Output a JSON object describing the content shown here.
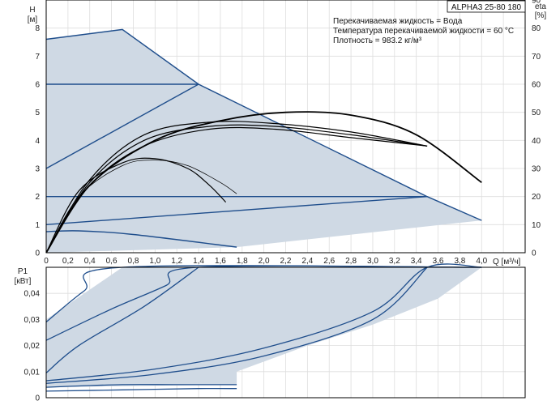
{
  "header": {
    "model": "ALPHA3 25-80 180",
    "info_lines": [
      "Перекачиваемая жидкость = Вода",
      "Температура перекачиваемой жидкости = 60 °C",
      "Плотность = 983.2 кг/м³"
    ]
  },
  "colors": {
    "area_fill": "#cfd9e4",
    "curve_blue": "#1f4e8c",
    "curve_black": "#000000",
    "grid": "#dddddd"
  },
  "chart_data": [
    {
      "type": "line",
      "name": "head-and-efficiency",
      "xlabel": "Q [м³/ч]",
      "ylabel_line1": "H",
      "ylabel_line2": "[м]",
      "y2label_line1": "eta",
      "y2label_line2": "[%]",
      "xlim": [
        0,
        4.4
      ],
      "ylim": [
        0,
        9
      ],
      "y2lim": [
        0,
        90
      ],
      "grid": true,
      "x_ticks": [
        "0",
        "0,2",
        "0,4",
        "0,6",
        "0,8",
        "1,0",
        "1,2",
        "1,4",
        "1,6",
        "1,8",
        "2,0",
        "2,2",
        "2,4",
        "2,6",
        "2,8",
        "3,0",
        "3,2",
        "3,4",
        "3,6",
        "3,8",
        "4,0"
      ],
      "y_ticks": [
        "0",
        "1",
        "2",
        "3",
        "4",
        "5",
        "6",
        "7",
        "8"
      ],
      "y2_ticks": [
        "0",
        "10",
        "20",
        "30",
        "40",
        "50",
        "60",
        "70",
        "80",
        "90"
      ],
      "operating_area": {
        "x": [
          0,
          0.7,
          1.4,
          3.5,
          4.0,
          4.0,
          1.75,
          0
        ],
        "y": [
          7.6,
          7.95,
          6.0,
          2.0,
          1.15,
          1.15,
          0.2,
          0
        ]
      },
      "head_curves": [
        {
          "x": [
            0,
            0.7,
            1.4,
            3.5,
            4.0
          ],
          "y": [
            7.6,
            7.95,
            6.0,
            2.0,
            1.15
          ]
        },
        {
          "x": [
            0,
            1.4
          ],
          "y": [
            6.0,
            6.0
          ]
        },
        {
          "x": [
            0,
            1.4
          ],
          "y": [
            3.0,
            6.0
          ]
        },
        {
          "x": [
            0,
            3.5
          ],
          "y": [
            2.0,
            2.0
          ]
        },
        {
          "x": [
            0,
            3.5
          ],
          "y": [
            1.0,
            2.0
          ]
        },
        {
          "x": [
            0,
            0.3,
            0.8,
            1.75
          ],
          "y": [
            0.75,
            0.78,
            0.65,
            0.2
          ]
        }
      ],
      "efficiency_curves": [
        {
          "x": [
            0,
            0.4,
            1.0,
            1.6,
            2.2,
            2.8,
            3.4,
            4.0
          ],
          "y": [
            0,
            24,
            40,
            47,
            50,
            49,
            42,
            25
          ]
        },
        {
          "x": [
            0,
            0.4,
            0.9,
            1.5,
            2.1,
            2.8,
            3.5
          ],
          "y": [
            0,
            26,
            42,
            46.5,
            46,
            43,
            38
          ]
        },
        {
          "x": [
            0,
            0.4,
            0.9,
            1.5,
            2.1,
            2.8,
            3.5
          ],
          "y": [
            0,
            25,
            40,
            45,
            45,
            42,
            38
          ]
        },
        {
          "x": [
            0,
            0.4,
            0.9,
            1.5,
            2.1,
            2.8,
            3.5
          ],
          "y": [
            0,
            24,
            38,
            44,
            44,
            41,
            38
          ]
        },
        {
          "x": [
            0,
            0.3,
            0.7,
            1.0,
            1.3,
            1.6,
            1.75
          ],
          "y": [
            0,
            20,
            31,
            33,
            31,
            25,
            21
          ]
        },
        {
          "x": [
            0,
            0.3,
            0.7,
            1.0,
            1.3,
            1.5,
            1.65
          ],
          "y": [
            0,
            22,
            32,
            33.5,
            30,
            24,
            18
          ]
        }
      ]
    },
    {
      "type": "line",
      "name": "power",
      "ylabel_line1": "P1",
      "ylabel_line2": "[кВт]",
      "xlim": [
        0,
        4.4
      ],
      "ylim": [
        0,
        0.05
      ],
      "grid": true,
      "y_ticks": [
        "0",
        "0,01",
        "0,02",
        "0,03",
        "0,04"
      ],
      "operating_area": {
        "x": [
          0,
          0.7,
          4.0,
          3.6,
          3.0,
          2.4,
          1.75,
          1.75,
          0
        ],
        "y": [
          0.03,
          0.05,
          0.05,
          0.038,
          0.028,
          0.02,
          0.01,
          0.005,
          0.004
        ]
      },
      "power_curves": [
        {
          "x": [
            0,
            0.35,
            0.7,
            4.0
          ],
          "y": [
            0.029,
            0.041,
            0.05,
            0.05
          ]
        },
        {
          "x": [
            0,
            0.6,
            1.1,
            1.4,
            4.0
          ],
          "y": [
            0.022,
            0.034,
            0.043,
            0.05,
            0.05
          ]
        },
        {
          "x": [
            0,
            0.3,
            0.9,
            1.4
          ],
          "y": [
            0.0095,
            0.02,
            0.035,
            0.05
          ]
        },
        {
          "x": [
            0,
            1.0,
            2.0,
            3.0,
            3.5,
            4.0
          ],
          "y": [
            0.0065,
            0.011,
            0.019,
            0.033,
            0.05,
            0.05
          ]
        },
        {
          "x": [
            0,
            1.0,
            2.0,
            3.0,
            3.5
          ],
          "y": [
            0.0055,
            0.009,
            0.016,
            0.03,
            0.05
          ]
        },
        {
          "x": [
            0,
            0.3,
            0.7,
            1.2,
            1.75
          ],
          "y": [
            0.004,
            0.0045,
            0.005,
            0.005,
            0.005
          ]
        },
        {
          "x": [
            0,
            0.7,
            1.4,
            1.75
          ],
          "y": [
            0.0025,
            0.003,
            0.0035,
            0.0035
          ]
        }
      ]
    }
  ]
}
